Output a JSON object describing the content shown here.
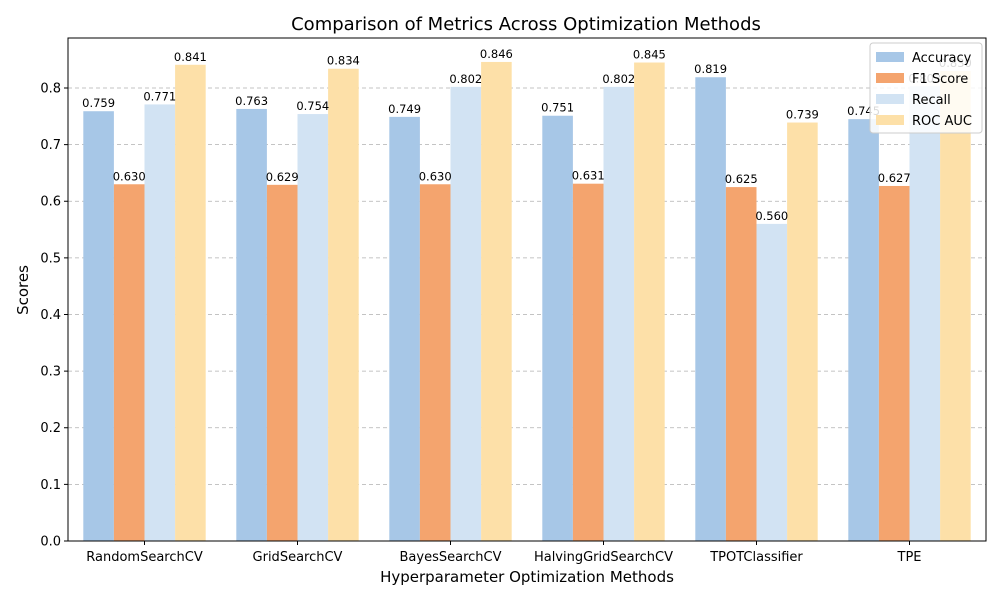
{
  "chart_data": {
    "type": "bar",
    "title": "Comparison of Metrics Across Optimization Methods",
    "xlabel": "Hyperparameter Optimization Methods",
    "ylabel": "Scores",
    "categories": [
      "RandomSearchCV",
      "GridSearchCV",
      "BayesSearchCV",
      "HalvingGridSearchCV",
      "TPOTClassifier",
      "TPE"
    ],
    "series": [
      {
        "name": "Accuracy",
        "color": "#a7c7e7",
        "values": [
          0.759,
          0.763,
          0.749,
          0.751,
          0.819,
          0.745
        ]
      },
      {
        "name": "F1 Score",
        "color": "#f4a46e",
        "values": [
          0.63,
          0.629,
          0.63,
          0.631,
          0.625,
          0.627
        ]
      },
      {
        "name": "Recall",
        "color": "#d2e3f3",
        "values": [
          0.771,
          0.754,
          0.802,
          0.802,
          0.56,
          0.803
        ]
      },
      {
        "name": "ROC AUC",
        "color": "#fde0a8",
        "values": [
          0.841,
          0.834,
          0.846,
          0.845,
          0.739,
          0.83
        ]
      }
    ],
    "ylim": [
      0,
      0.8883
    ],
    "yticks": [
      "0.0",
      "0.1",
      "0.2",
      "0.3",
      "0.4",
      "0.5",
      "0.6",
      "0.7",
      "0.8"
    ],
    "grid": "horizontal dashed",
    "legend_position": "top-right"
  }
}
